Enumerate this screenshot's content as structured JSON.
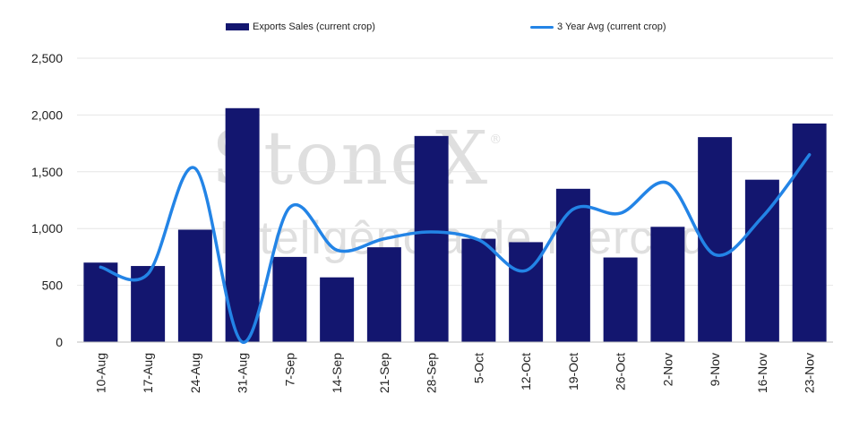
{
  "legend": {
    "bar_label": "Exports Sales (current crop)",
    "line_label": "3 Year Avg (current crop)"
  },
  "watermark": {
    "brand": "StoneX",
    "registered": "®",
    "tagline": "Inteligência de Mercado"
  },
  "colors": {
    "bar": "#13166f",
    "line": "#2384e6",
    "grid": "#e6e6e6"
  },
  "chart_data": {
    "type": "bar",
    "title": "",
    "xlabel": "",
    "ylabel": "",
    "ylim": [
      0,
      2500
    ],
    "yticks": [
      0,
      500,
      1000,
      1500,
      2000,
      2500
    ],
    "ytick_labels": [
      "0",
      "500",
      "1,000",
      "1,500",
      "2,000",
      "2,500"
    ],
    "categories": [
      "10-Aug",
      "17-Aug",
      "24-Aug",
      "31-Aug",
      "7-Sep",
      "14-Sep",
      "21-Sep",
      "28-Sep",
      "5-Oct",
      "12-Oct",
      "19-Oct",
      "26-Oct",
      "2-Nov",
      "9-Nov",
      "16-Nov",
      "23-Nov"
    ],
    "grid": true,
    "legend_position": "top",
    "series": [
      {
        "name": "Exports Sales (current crop)",
        "type": "bar",
        "values": [
          700,
          670,
          990,
          2060,
          750,
          570,
          835,
          1815,
          910,
          880,
          1350,
          745,
          1015,
          1805,
          1430,
          1925
        ]
      },
      {
        "name": "3 Year Avg (current crop)",
        "type": "line",
        "smooth": true,
        "values": [
          660,
          600,
          1530,
          0,
          1185,
          810,
          910,
          970,
          900,
          630,
          1170,
          1135,
          1400,
          770,
          1100,
          1650
        ]
      }
    ]
  }
}
